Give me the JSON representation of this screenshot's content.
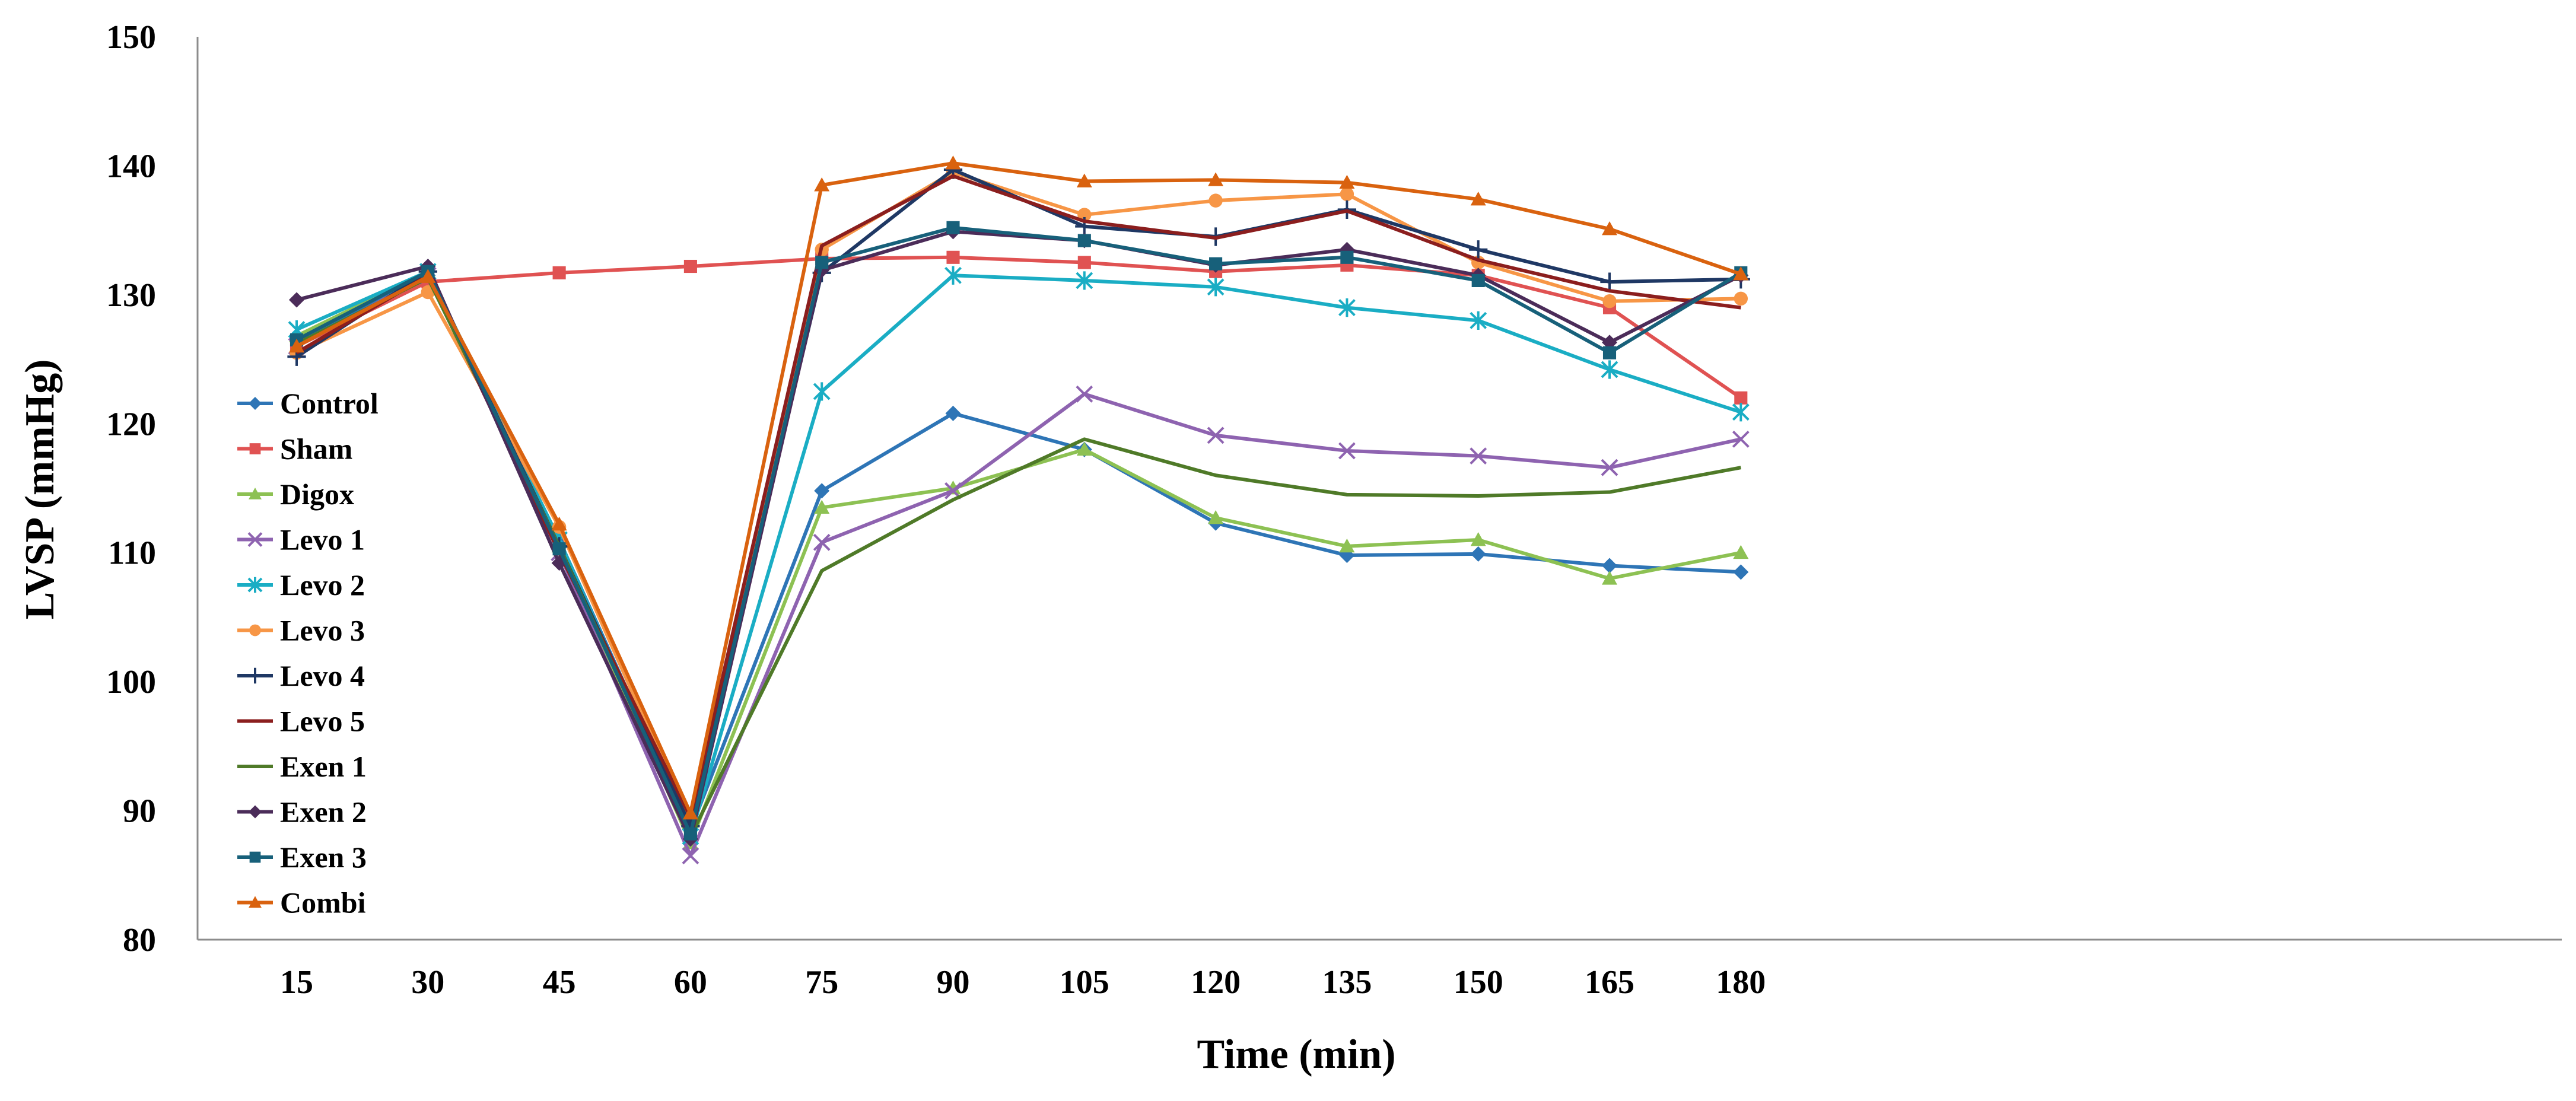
{
  "chart_data": {
    "type": "line",
    "title": "",
    "xlabel": "Time (min)",
    "ylabel": "LVSP (mmHg)",
    "x": [
      15,
      30,
      45,
      60,
      75,
      90,
      105,
      120,
      135,
      150,
      165,
      180
    ],
    "ylim": [
      80,
      150
    ],
    "yticks": [
      80,
      90,
      100,
      110,
      120,
      130,
      140,
      150
    ],
    "grid": false,
    "legend_position": "left",
    "series": [
      {
        "name": "Control",
        "color": "#2E75B6",
        "marker": "diamond",
        "values": [
          126.5,
          131.5,
          111.0,
          88.5,
          114.8,
          120.8,
          118.0,
          112.3,
          109.8,
          109.9,
          109.0,
          108.5
        ]
      },
      {
        "name": "Sham",
        "color": "#E05252",
        "marker": "square",
        "values": [
          126.0,
          131.0,
          131.7,
          132.2,
          132.8,
          132.9,
          132.5,
          131.8,
          132.3,
          131.5,
          129.0,
          122.0
        ]
      },
      {
        "name": "Digox",
        "color": "#8DC153",
        "marker": "triangle",
        "values": [
          126.8,
          131.8,
          110.5,
          87.5,
          113.5,
          115.0,
          118.0,
          112.7,
          110.5,
          111.0,
          108.0,
          110.0
        ]
      },
      {
        "name": "Levo 1",
        "color": "#8E63B0",
        "marker": "x",
        "values": [
          126.0,
          131.5,
          110.0,
          86.5,
          110.8,
          114.8,
          122.3,
          119.1,
          117.9,
          117.5,
          116.6,
          118.8
        ]
      },
      {
        "name": "Levo 2",
        "color": "#1AADC4",
        "marker": "star",
        "values": [
          127.3,
          131.8,
          111.0,
          88.0,
          122.5,
          131.5,
          131.1,
          130.6,
          129.0,
          128.0,
          124.2,
          120.9
        ]
      },
      {
        "name": "Levo 3",
        "color": "#F79646",
        "marker": "circle",
        "values": [
          125.5,
          130.2,
          112.0,
          89.0,
          133.5,
          139.5,
          136.2,
          137.3,
          137.8,
          132.5,
          129.5,
          129.7
        ]
      },
      {
        "name": "Levo 4",
        "color": "#1F3864",
        "marker": "plus",
        "values": [
          125.2,
          131.8,
          110.5,
          88.8,
          131.7,
          139.7,
          135.3,
          134.5,
          136.6,
          133.5,
          131.0,
          131.2
        ]
      },
      {
        "name": "Levo 5",
        "color": "#8B1E1E",
        "marker": "none",
        "values": [
          125.5,
          131.5,
          110.0,
          89.5,
          133.8,
          139.2,
          135.7,
          134.4,
          136.5,
          132.7,
          130.3,
          129.0
        ]
      },
      {
        "name": "Exen 1",
        "color": "#4F7A28",
        "marker": "none",
        "values": [
          126.2,
          131.3,
          110.5,
          88.0,
          108.6,
          114.1,
          118.8,
          116.0,
          114.5,
          114.4,
          114.7,
          116.6
        ]
      },
      {
        "name": "Exen 2",
        "color": "#4B2C59",
        "marker": "diamond",
        "values": [
          129.6,
          132.2,
          109.2,
          87.8,
          131.9,
          134.9,
          134.2,
          132.3,
          133.5,
          131.5,
          126.3,
          131.5
        ]
      },
      {
        "name": "Exen 3",
        "color": "#17607A",
        "marker": "square",
        "values": [
          126.5,
          131.8,
          110.3,
          88.2,
          132.5,
          135.2,
          134.2,
          132.4,
          132.9,
          131.1,
          125.5,
          131.7
        ]
      },
      {
        "name": "Combi",
        "color": "#D9620F",
        "marker": "triangle",
        "values": [
          126.0,
          131.4,
          112.2,
          89.8,
          138.5,
          140.2,
          138.8,
          138.9,
          138.7,
          137.4,
          135.1,
          131.6
        ]
      }
    ]
  }
}
